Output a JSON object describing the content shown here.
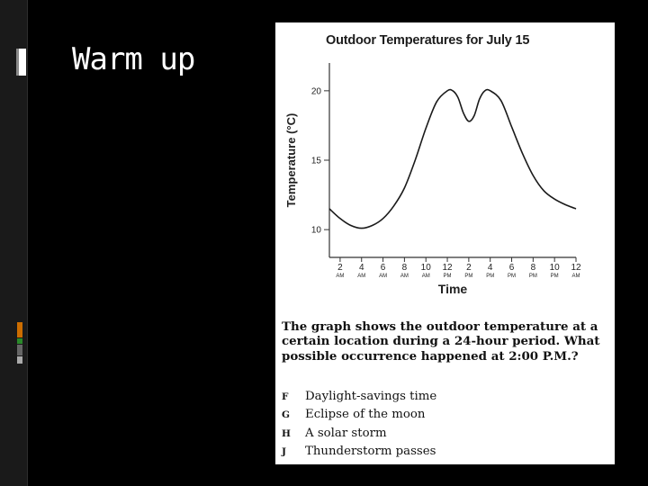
{
  "slide": {
    "title": "Warm up",
    "accent_colors": [
      "#cc6d00",
      "#2a8a2a",
      "#666666",
      "#aaaaaa"
    ]
  },
  "question": {
    "text": "The graph shows the outdoor temperature at a certain location during a 24-hour period. What possible occurrence happened at 2:00 P.M.?",
    "options": [
      {
        "letter": "F",
        "text": "Daylight-savings time"
      },
      {
        "letter": "G",
        "text": "Eclipse of the moon"
      },
      {
        "letter": "H",
        "text": "A solar storm"
      },
      {
        "letter": "J",
        "text": "Thunderstorm passes"
      }
    ]
  },
  "chart_data": {
    "type": "line",
    "title": "Outdoor Temperatures for July 15",
    "xlabel": "Time",
    "ylabel": "Temperature (°C)",
    "ylim": [
      8,
      22
    ],
    "xlim": [
      1,
      24
    ],
    "yticks": [
      10,
      15,
      20
    ],
    "x_ticks": [
      {
        "hour": 2,
        "num": "2",
        "ampm": "AM"
      },
      {
        "hour": 4,
        "num": "4",
        "ampm": "AM"
      },
      {
        "hour": 6,
        "num": "6",
        "ampm": "AM"
      },
      {
        "hour": 8,
        "num": "8",
        "ampm": "AM"
      },
      {
        "hour": 10,
        "num": "10",
        "ampm": "AM"
      },
      {
        "hour": 12,
        "num": "12",
        "ampm": "PM"
      },
      {
        "hour": 14,
        "num": "2",
        "ampm": "PM"
      },
      {
        "hour": 16,
        "num": "4",
        "ampm": "PM"
      },
      {
        "hour": 18,
        "num": "6",
        "ampm": "PM"
      },
      {
        "hour": 20,
        "num": "8",
        "ampm": "PM"
      },
      {
        "hour": 22,
        "num": "10",
        "ampm": "PM"
      },
      {
        "hour": 24,
        "num": "12",
        "ampm": "AM"
      }
    ],
    "series": [
      {
        "name": "Temperature",
        "points": [
          [
            1,
            11.5
          ],
          [
            2,
            10.8
          ],
          [
            3,
            10.3
          ],
          [
            4,
            10.1
          ],
          [
            5,
            10.3
          ],
          [
            6,
            10.8
          ],
          [
            7,
            11.7
          ],
          [
            8,
            13.0
          ],
          [
            9,
            15.0
          ],
          [
            10,
            17.3
          ],
          [
            11,
            19.2
          ],
          [
            12,
            20.0
          ],
          [
            12.5,
            20.0
          ],
          [
            13,
            19.5
          ],
          [
            13.5,
            18.4
          ],
          [
            14,
            17.8
          ],
          [
            14.5,
            18.2
          ],
          [
            15,
            19.4
          ],
          [
            15.5,
            20.0
          ],
          [
            16,
            20.0
          ],
          [
            17,
            19.3
          ],
          [
            18,
            17.4
          ],
          [
            19,
            15.5
          ],
          [
            20,
            13.9
          ],
          [
            21,
            12.8
          ],
          [
            22,
            12.2
          ],
          [
            23,
            11.8
          ],
          [
            24,
            11.5
          ]
        ]
      }
    ]
  }
}
